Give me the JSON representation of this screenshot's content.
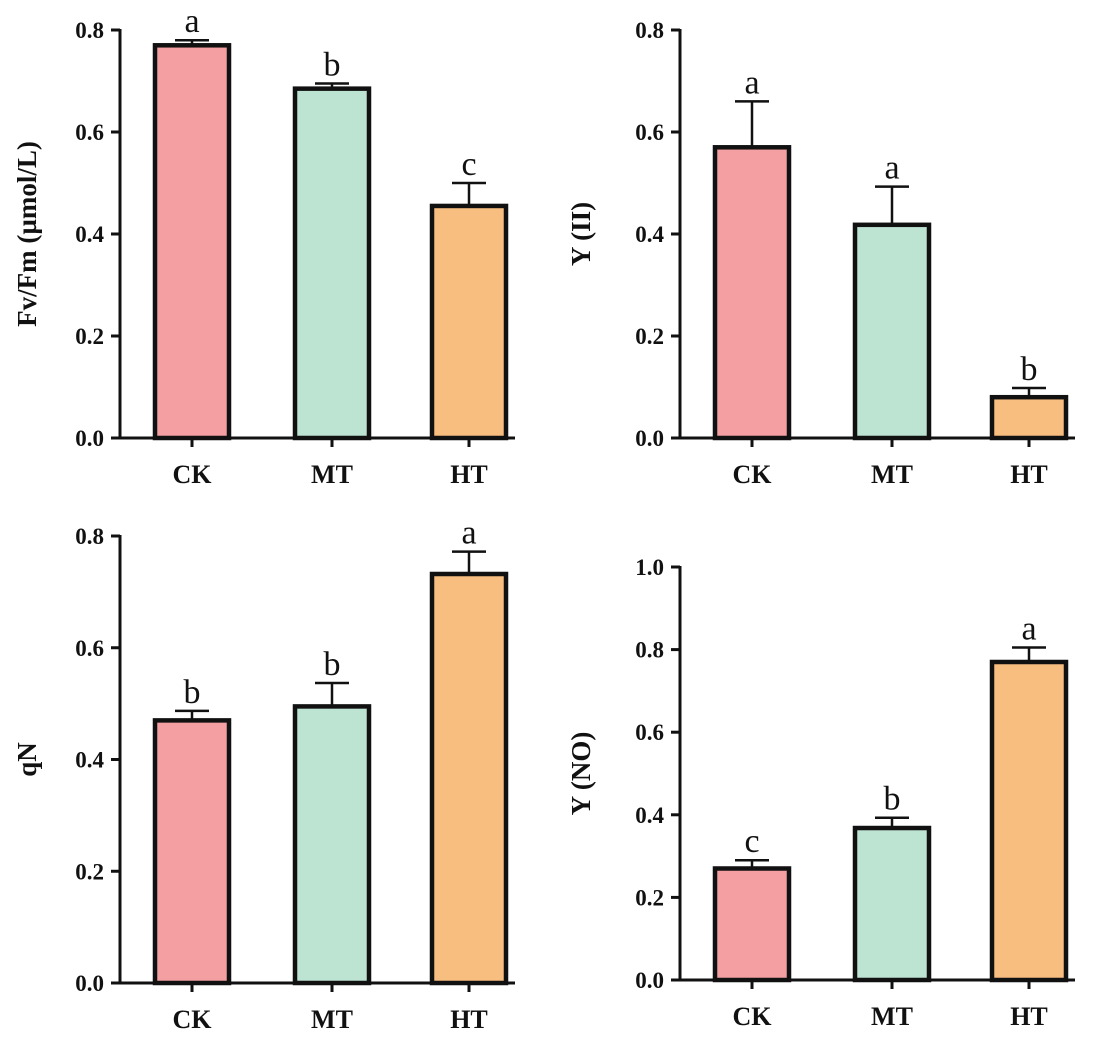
{
  "chart_data": [
    {
      "type": "bar",
      "ylabel": "Fv/Fm (µmol/L)",
      "categories": [
        "CK",
        "MT",
        "HT"
      ],
      "values": [
        0.77,
        0.685,
        0.455
      ],
      "errors": [
        0.01,
        0.01,
        0.045
      ],
      "letters": [
        "a",
        "b",
        "c"
      ],
      "ylim": [
        0,
        0.8
      ],
      "yticks": [
        0.0,
        0.2,
        0.4,
        0.6,
        0.8
      ],
      "ytick_labels": [
        "0.0",
        "0.2",
        "0.4",
        "0.6",
        "0.8"
      ],
      "grid": false
    },
    {
      "type": "bar",
      "ylabel": "Y (II)",
      "categories": [
        "CK",
        "MT",
        "HT"
      ],
      "values": [
        0.57,
        0.418,
        0.08
      ],
      "errors": [
        0.09,
        0.075,
        0.018
      ],
      "letters": [
        "a",
        "a",
        "b"
      ],
      "ylim": [
        0,
        0.8
      ],
      "yticks": [
        0.0,
        0.2,
        0.4,
        0.6,
        0.8
      ],
      "ytick_labels": [
        "0.0",
        "0.2",
        "0.4",
        "0.6",
        "0.8"
      ],
      "grid": false
    },
    {
      "type": "bar",
      "ylabel": "qN",
      "categories": [
        "CK",
        "MT",
        "HT"
      ],
      "values": [
        0.47,
        0.495,
        0.732
      ],
      "errors": [
        0.017,
        0.042,
        0.04
      ],
      "letters": [
        "b",
        "b",
        "a"
      ],
      "ylim": [
        0,
        0.8
      ],
      "yticks": [
        0.0,
        0.2,
        0.4,
        0.6,
        0.8
      ],
      "ytick_labels": [
        "0.0",
        "0.2",
        "0.4",
        "0.6",
        "0.8"
      ],
      "grid": false
    },
    {
      "type": "bar",
      "ylabel": "Y (NO)",
      "categories": [
        "CK",
        "MT",
        "HT"
      ],
      "values": [
        0.27,
        0.368,
        0.77
      ],
      "errors": [
        0.02,
        0.025,
        0.035
      ],
      "letters": [
        "c",
        "b",
        "a"
      ],
      "ylim": [
        0,
        1.0
      ],
      "yticks": [
        0.0,
        0.2,
        0.4,
        0.6,
        0.8,
        1.0
      ],
      "ytick_labels": [
        "0.0",
        "0.2",
        "0.4",
        "0.6",
        "0.8",
        "1.0"
      ],
      "grid": false
    }
  ],
  "colors": {
    "CK": "#f4a0a3",
    "MT": "#bde3d3",
    "HT": "#f8be80",
    "axis": "#111111"
  }
}
